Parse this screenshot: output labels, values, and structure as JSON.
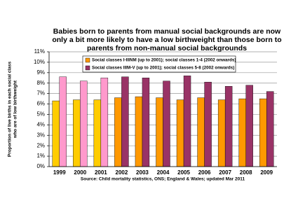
{
  "chart_data": {
    "type": "bar",
    "title_lines": [
      "Babies born to parents from manual social backgrounds are now",
      "only a bit more likely to have a low birthweight than those born to",
      "parents from non-manual social backgrounds"
    ],
    "y_label_lines": [
      "Proportion of live births in each social class",
      "who are of low birthweight"
    ],
    "source": "Source: Child mortality statistics, ONS; England & Wales; updated Mar 2011",
    "categories": [
      "1999",
      "2000",
      "2001",
      "2002",
      "2003",
      "2004",
      "2005",
      "2006",
      "2007",
      "2008",
      "2009"
    ],
    "series": [
      {
        "name": "Social classes I-IIINM (up to 2001); social classes 1-4 (2002 onwards)",
        "color": "#ff9900",
        "point_colors": [
          "#ffcc00",
          "#ffcc00",
          "#ffcc00",
          "#ff9900",
          "#ff9900",
          "#ff9900",
          "#ff9900",
          "#ff9900",
          "#ff9900",
          "#ff9900",
          "#ff9900"
        ],
        "values": [
          6.3,
          6.4,
          6.4,
          6.6,
          6.7,
          6.6,
          6.4,
          6.6,
          6.4,
          6.5,
          6.5
        ]
      },
      {
        "name": "Social classes IIIM-V (up to 2001); social classes 5-8 (2002 onwards)",
        "color": "#993366",
        "point_colors": [
          "#ff99cc",
          "#ff99cc",
          "#ff99cc",
          "#993366",
          "#993366",
          "#993366",
          "#993366",
          "#993366",
          "#993366",
          "#993366",
          "#993366"
        ],
        "values": [
          8.6,
          8.2,
          8.5,
          8.6,
          8.5,
          8.2,
          8.7,
          8.1,
          7.7,
          7.8,
          7.2
        ]
      }
    ],
    "ylim": [
      0,
      11
    ],
    "yticks": [
      {
        "value": 0,
        "label": "0%"
      },
      {
        "value": 1,
        "label": "1%"
      },
      {
        "value": 2,
        "label": "2%"
      },
      {
        "value": 3,
        "label": "3%"
      },
      {
        "value": 4,
        "label": "4%"
      },
      {
        "value": 5,
        "label": "5%"
      },
      {
        "value": 6,
        "label": "6%"
      },
      {
        "value": 7,
        "label": "7%"
      },
      {
        "value": 8,
        "label": "8%"
      },
      {
        "value": 9,
        "label": "9%"
      },
      {
        "value": 10,
        "label": "10%"
      },
      {
        "value": 11,
        "label": "11%"
      }
    ],
    "grid": true
  }
}
